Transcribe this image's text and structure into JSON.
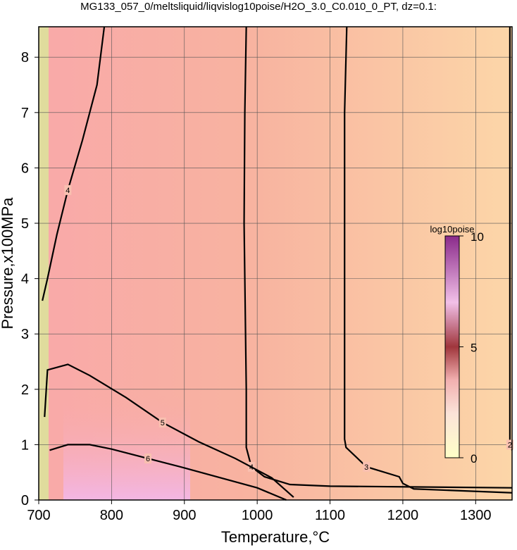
{
  "chart_data": {
    "type": "contour",
    "title": "MG133_057_0/meltsliquid/liqvislog10poise/H2O_3.0_C0.010_0_PT, dz=0.1:",
    "x_label": "Temperature,°C",
    "y_label": "Pressure,x100MPa",
    "xlim": [
      700,
      1350
    ],
    "ylim": [
      0,
      8.55
    ],
    "xticks": [
      700,
      800,
      900,
      1000,
      1100,
      1200,
      1300
    ],
    "yticks": [
      0,
      1,
      2,
      3,
      4,
      5,
      6,
      7,
      8
    ],
    "grid": true,
    "contours": [
      {
        "level": 2,
        "x": [
          1347,
          1347,
          1347,
          1350
        ],
        "y": [
          8.55,
          5.9,
          1.0,
          0.9
        ]
      },
      {
        "level": 3,
        "x": [
          1123,
          1120,
          1120,
          1120,
          1122,
          1150,
          1195,
          1200,
          1215,
          1350
        ],
        "y": [
          8.55,
          7.0,
          4.9,
          1.1,
          0.95,
          0.6,
          0.42,
          0.3,
          0.2,
          0.13
        ]
      },
      {
        "level": 4,
        "x": [
          985,
          983,
          982,
          985,
          985,
          992,
          1010,
          1045,
          1100,
          1350
        ],
        "y": [
          8.55,
          7.0,
          5.0,
          2.0,
          0.95,
          0.6,
          0.42,
          0.28,
          0.25,
          0.22
        ]
      },
      {
        "level": 4,
        "x": [
          790,
          780,
          760,
          740,
          725,
          712,
          705
        ],
        "y": [
          8.55,
          7.5,
          6.5,
          5.6,
          4.8,
          4.0,
          3.6
        ]
      },
      {
        "level": 5,
        "x": [
          708,
          712,
          740,
          770,
          820,
          870,
          920,
          970,
          1020,
          1050
        ],
        "y": [
          1.5,
          2.35,
          2.45,
          2.25,
          1.85,
          1.4,
          1.05,
          0.75,
          0.4,
          0.05
        ]
      },
      {
        "level": 6,
        "x": [
          715,
          740,
          770,
          800,
          850,
          900,
          950,
          1000,
          1040
        ],
        "y": [
          0.9,
          1.0,
          1.0,
          0.92,
          0.75,
          0.58,
          0.4,
          0.22,
          0.0
        ]
      }
    ],
    "colorbar": {
      "title": "log10poise",
      "lim": [
        0,
        10
      ],
      "ticks": [
        0,
        5,
        10
      ]
    }
  }
}
